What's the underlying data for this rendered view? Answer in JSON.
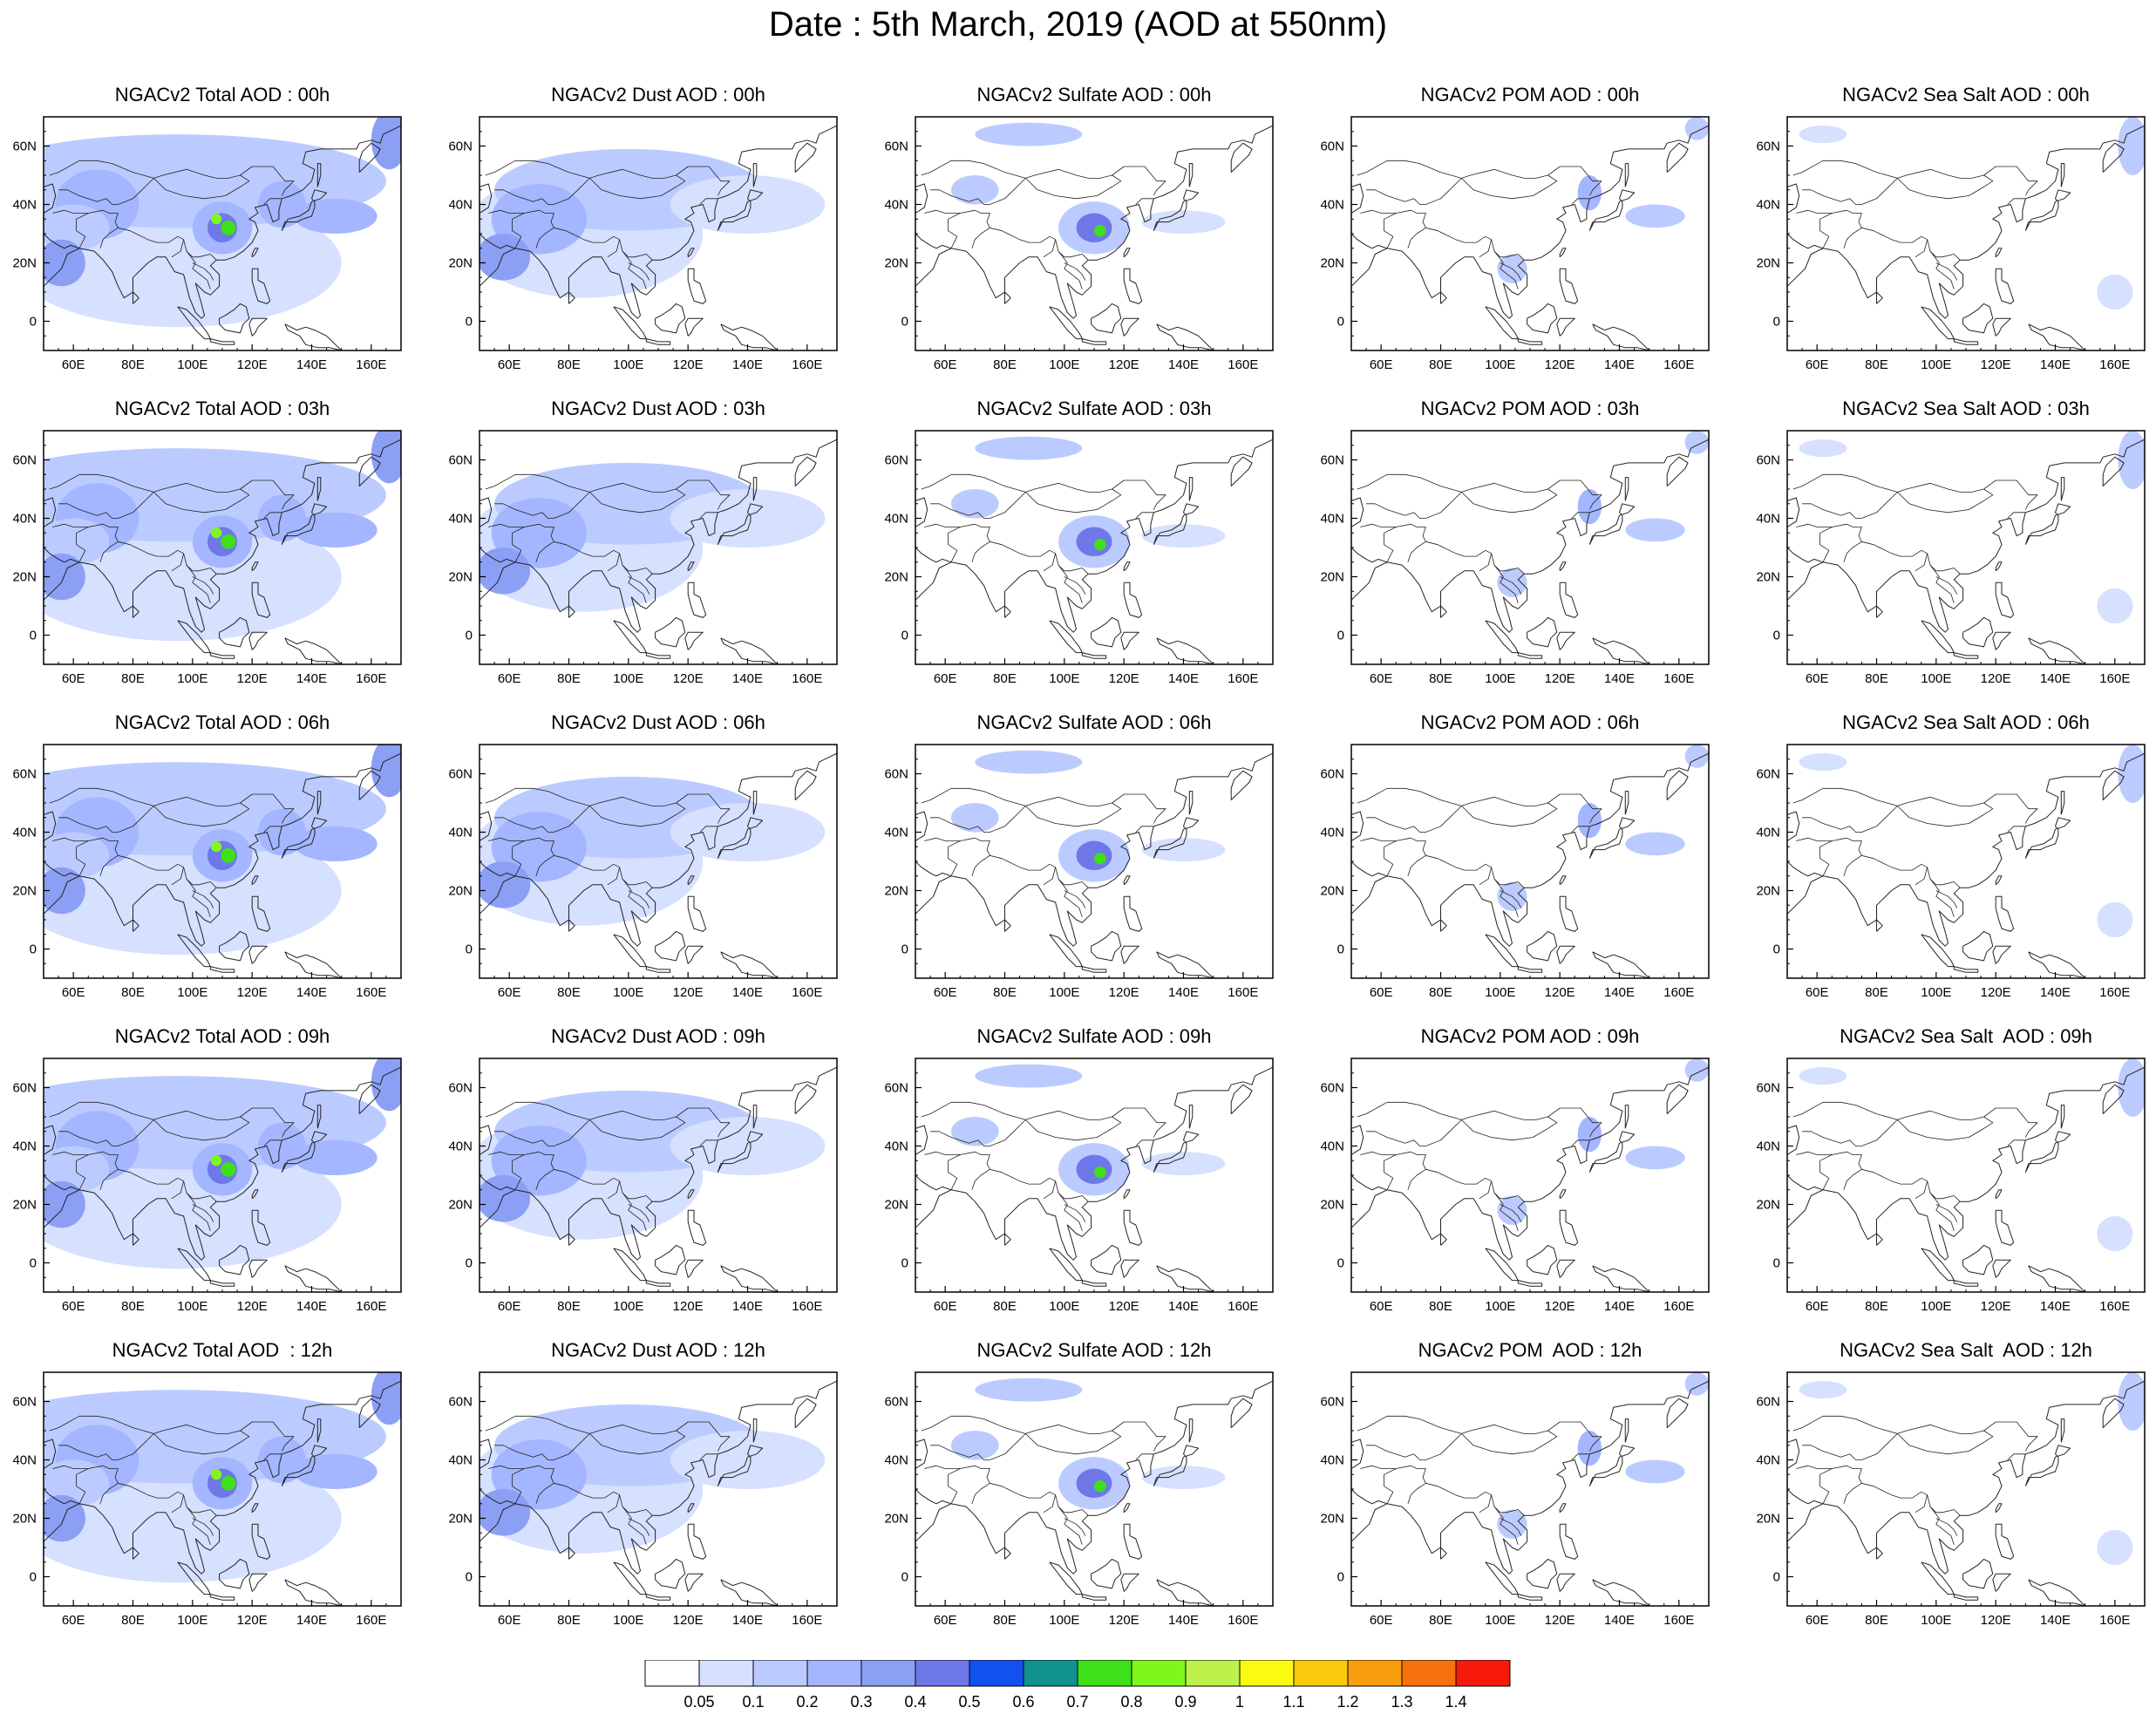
{
  "title": "Date : 5th March, 2019 (AOD at 550nm)",
  "panels": [
    [
      "NGACv2 Total AOD : 00h",
      "NGACv2 Dust AOD : 00h",
      "NGACv2 Sulfate AOD : 00h",
      "NGACv2 POM AOD : 00h",
      "NGACv2 Sea Salt AOD : 00h"
    ],
    [
      "NGACv2 Total AOD : 03h",
      "NGACv2 Dust AOD : 03h",
      "NGACv2 Sulfate AOD : 03h",
      "NGACv2 POM AOD : 03h",
      "NGACv2 Sea Salt AOD : 03h"
    ],
    [
      "NGACv2 Total AOD : 06h",
      "NGACv2 Dust AOD : 06h",
      "NGACv2 Sulfate AOD : 06h",
      "NGACv2 POM AOD : 06h",
      "NGACv2 Sea Salt AOD : 06h"
    ],
    [
      "NGACv2 Total AOD : 09h",
      "NGACv2 Dust AOD : 09h",
      "NGACv2 Sulfate AOD : 09h",
      "NGACv2 POM AOD : 09h",
      "NGACv2 Sea Salt  AOD : 09h"
    ],
    [
      "NGACv2 Total AOD  : 12h",
      "NGACv2 Dust AOD : 12h",
      "NGACv2 Sulfate AOD : 12h",
      "NGACv2 POM  AOD : 12h",
      "NGACv2 Sea Salt  AOD : 12h"
    ]
  ],
  "axes": {
    "x_ticks": [
      "60E",
      "80E",
      "100E",
      "120E",
      "140E",
      "160E"
    ],
    "y_ticks": [
      "60N",
      "40N",
      "20N",
      "0"
    ]
  },
  "colorbar": {
    "labels": [
      "0.05",
      "0.1",
      "0.2",
      "0.3",
      "0.4",
      "0.5",
      "0.6",
      "0.7",
      "0.8",
      "0.9",
      "1",
      "1.1",
      "1.2",
      "1.3",
      "1.4"
    ],
    "colors": [
      "#ffffff",
      "#d6e0ff",
      "#bccbff",
      "#a3b6ff",
      "#8b9ff5",
      "#6f78e8",
      "#1250ef",
      "#129191",
      "#3ee01a",
      "#7ef71b",
      "#bdf24a",
      "#fbfb12",
      "#fbc90c",
      "#fa9d0c",
      "#f7710c",
      "#f71a0c"
    ]
  }
}
